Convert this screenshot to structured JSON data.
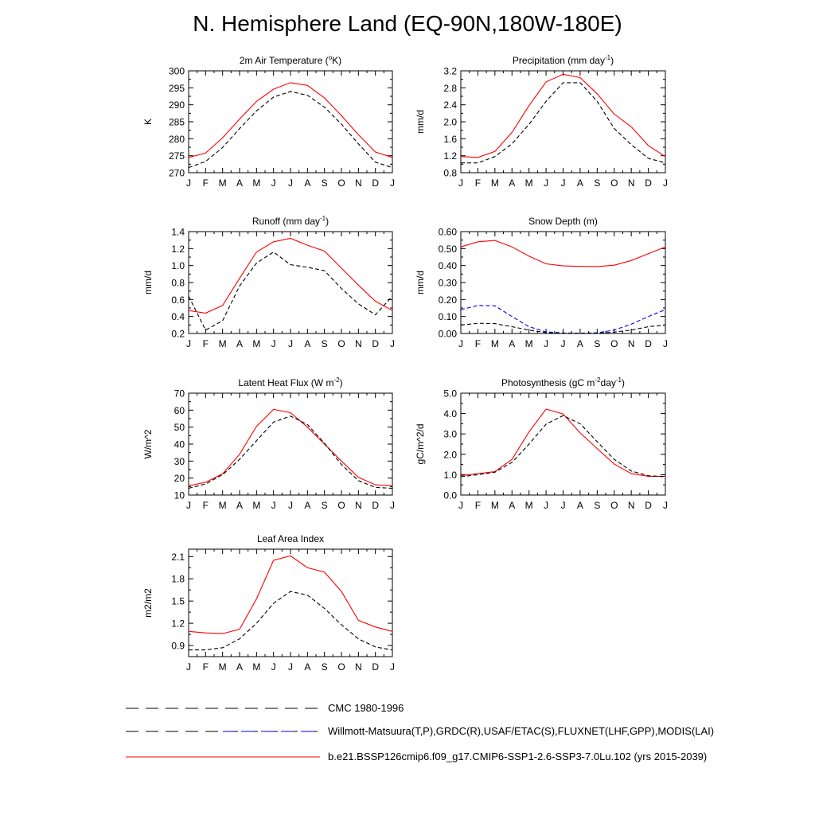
{
  "figure_title": "N. Hemisphere Land (EQ-90N,180W-180E)",
  "legend": [
    {
      "label": "CMC 1980-1996",
      "color": "#000000",
      "style": "dashed"
    },
    {
      "label": "Willmott-Matsuura(T,P),GRDC(R),USAF/ETAC(S),FLUXNET(LHF,GPP),MODIS(LAI)",
      "color": "#000000",
      "style": "dashed"
    },
    {
      "label": "b.e21.BSSP126cmip6.f09_g17.CMIP6-SSP1-2.6-SSP3-7.0Lu.102 (yrs 2015-2039)",
      "color": "#ff0000",
      "style": "solid"
    }
  ],
  "chart_data": [
    {
      "type": "line",
      "title": "2m Air Temperature (°K)",
      "title_parts": [
        "2m Air Temperature (",
        "o",
        "K)"
      ],
      "ylabel": "K",
      "x": [
        "J",
        "F",
        "M",
        "A",
        "M",
        "J",
        "J",
        "A",
        "S",
        "O",
        "N",
        "D",
        "J"
      ],
      "ylim": [
        270,
        300
      ],
      "yticks": [
        270,
        275,
        280,
        285,
        290,
        295,
        300
      ],
      "ytick_labels": [
        "270",
        "275",
        "280",
        "285",
        "290",
        "295",
        "300"
      ],
      "series": [
        {
          "color": "#ff0000",
          "style": "solid",
          "values": [
            274.5,
            275.8,
            280.3,
            285.8,
            291.0,
            294.6,
            296.5,
            295.7,
            292.0,
            286.8,
            281.2,
            276.1,
            274.5
          ]
        },
        {
          "color": "#000000",
          "style": "dashed",
          "values": [
            271.5,
            273.3,
            277.4,
            283.0,
            288.2,
            292.3,
            293.9,
            292.8,
            289.3,
            284.3,
            278.5,
            273.1,
            271.5
          ]
        }
      ]
    },
    {
      "type": "line",
      "title": "Precipitation (mm day-1)",
      "title_parts": [
        "Precipitation (mm day",
        "-1",
        ")"
      ],
      "ylabel": "mm/d",
      "x": [
        "J",
        "F",
        "M",
        "A",
        "M",
        "J",
        "J",
        "A",
        "S",
        "O",
        "N",
        "D",
        "J"
      ],
      "ylim": [
        0.8,
        3.2
      ],
      "yticks": [
        0.8,
        1.2,
        1.6,
        2.0,
        2.4,
        2.8,
        3.2
      ],
      "ytick_labels": [
        "0.8",
        "1.2",
        "1.6",
        "2.0",
        "2.4",
        "2.8",
        "3.2"
      ],
      "series": [
        {
          "color": "#ff0000",
          "style": "solid",
          "values": [
            1.18,
            1.16,
            1.3,
            1.75,
            2.38,
            2.94,
            3.12,
            3.04,
            2.66,
            2.18,
            1.88,
            1.44,
            1.18
          ]
        },
        {
          "color": "#000000",
          "style": "dashed",
          "values": [
            1.03,
            1.03,
            1.18,
            1.48,
            1.94,
            2.48,
            2.92,
            2.92,
            2.48,
            1.84,
            1.46,
            1.14,
            1.03
          ]
        }
      ]
    },
    {
      "type": "line",
      "title": "Runoff (mm day-1)",
      "title_parts": [
        "Runoff (mm day",
        "-1",
        ")"
      ],
      "ylabel": "mm/d",
      "x": [
        "J",
        "F",
        "M",
        "A",
        "M",
        "J",
        "J",
        "A",
        "S",
        "O",
        "N",
        "D",
        "J"
      ],
      "ylim": [
        0.2,
        1.4
      ],
      "yticks": [
        0.2,
        0.4,
        0.6,
        0.8,
        1.0,
        1.2,
        1.4
      ],
      "ytick_labels": [
        "0.2",
        "0.4",
        "0.6",
        "0.8",
        "1.0",
        "1.2",
        "1.4"
      ],
      "series": [
        {
          "color": "#ff0000",
          "style": "solid",
          "values": [
            0.47,
            0.44,
            0.53,
            0.85,
            1.16,
            1.28,
            1.32,
            1.24,
            1.17,
            0.97,
            0.77,
            0.58,
            0.47
          ]
        },
        {
          "color": "#000000",
          "style": "dashed",
          "values": [
            0.64,
            0.24,
            0.35,
            0.76,
            1.03,
            1.16,
            1.01,
            0.98,
            0.94,
            0.73,
            0.55,
            0.42,
            0.64
          ]
        }
      ]
    },
    {
      "type": "line",
      "title": "Snow Depth (m)",
      "title_parts": [
        "Snow Depth (m)",
        "",
        ""
      ],
      "ylabel": "mm/d",
      "x": [
        "J",
        "F",
        "M",
        "A",
        "M",
        "J",
        "J",
        "A",
        "S",
        "O",
        "N",
        "D",
        "J"
      ],
      "ylim": [
        0.0,
        0.6
      ],
      "yticks": [
        0.0,
        0.1,
        0.2,
        0.3,
        0.4,
        0.5,
        0.6
      ],
      "ytick_labels": [
        "0.00",
        "0.10",
        "0.20",
        "0.30",
        "0.40",
        "0.50",
        "0.60"
      ],
      "series": [
        {
          "color": "#ff0000",
          "style": "solid",
          "values": [
            0.51,
            0.54,
            0.548,
            0.51,
            0.455,
            0.41,
            0.398,
            0.395,
            0.394,
            0.402,
            0.43,
            0.47,
            0.51
          ]
        },
        {
          "color": "#0000ff",
          "style": "dashed",
          "values": [
            0.14,
            0.165,
            0.163,
            0.1,
            0.04,
            0.01,
            0.003,
            0.002,
            0.004,
            0.02,
            0.055,
            0.1,
            0.14
          ]
        },
        {
          "color": "#000000",
          "style": "dashed",
          "values": [
            0.05,
            0.06,
            0.058,
            0.04,
            0.02,
            0.005,
            0.002,
            0.001,
            0.002,
            0.008,
            0.02,
            0.04,
            0.05
          ]
        }
      ]
    },
    {
      "type": "line",
      "title": "Latent Heat Flux (W m-2)",
      "title_parts": [
        "Latent Heat Flux (W m",
        "-2",
        ")"
      ],
      "ylabel": "W/m^2",
      "x": [
        "J",
        "F",
        "M",
        "A",
        "M",
        "J",
        "J",
        "A",
        "S",
        "O",
        "N",
        "D",
        "J"
      ],
      "ylim": [
        10,
        70
      ],
      "yticks": [
        10,
        20,
        30,
        40,
        50,
        60,
        70
      ],
      "ytick_labels": [
        "10",
        "20",
        "30",
        "40",
        "50",
        "60",
        "70"
      ],
      "series": [
        {
          "color": "#ff0000",
          "style": "solid",
          "values": [
            15.5,
            17.5,
            22.5,
            34.0,
            50.5,
            60.5,
            58.5,
            50.0,
            40.0,
            30.0,
            20.5,
            16.0,
            15.5
          ]
        },
        {
          "color": "#000000",
          "style": "dashed",
          "values": [
            14.0,
            16.5,
            22.0,
            31.0,
            42.0,
            53.0,
            56.5,
            51.5,
            40.5,
            28.0,
            18.5,
            14.5,
            14.0
          ]
        }
      ]
    },
    {
      "type": "line",
      "title": "Photosynthesis (gC m-2day-1)",
      "title_parts": [
        "Photosynthesis (gC m",
        "-2",
        "day",
        "-1",
        ")"
      ],
      "ylabel": "gC/m^2/d",
      "x": [
        "J",
        "F",
        "M",
        "A",
        "M",
        "J",
        "J",
        "A",
        "S",
        "O",
        "N",
        "D",
        "J"
      ],
      "ylim": [
        0.0,
        5.0
      ],
      "yticks": [
        0.0,
        1.0,
        2.0,
        3.0,
        4.0,
        5.0
      ],
      "ytick_labels": [
        "0.0",
        "1.0",
        "2.0",
        "3.0",
        "4.0",
        "5.0"
      ],
      "series": [
        {
          "color": "#ff0000",
          "style": "solid",
          "values": [
            0.95,
            1.05,
            1.15,
            1.75,
            3.1,
            4.22,
            3.98,
            3.05,
            2.28,
            1.52,
            1.05,
            0.92,
            0.92
          ]
        },
        {
          "color": "#000000",
          "style": "dashed",
          "values": [
            0.9,
            1.0,
            1.12,
            1.6,
            2.5,
            3.48,
            3.9,
            3.5,
            2.62,
            1.75,
            1.18,
            0.95,
            0.9
          ]
        }
      ]
    },
    {
      "type": "line",
      "title": "Leaf Area Index",
      "title_parts": [
        "Leaf Area Index",
        "",
        ""
      ],
      "ylabel": "m2/m2",
      "x": [
        "J",
        "F",
        "M",
        "A",
        "M",
        "J",
        "J",
        "A",
        "S",
        "O",
        "N",
        "D",
        "J"
      ],
      "ylim": [
        0.75,
        2.2
      ],
      "yticks": [
        0.9,
        1.2,
        1.5,
        1.8,
        2.1
      ],
      "ytick_labels": [
        "0.9",
        "1.2",
        "1.5",
        "1.8",
        "2.1"
      ],
      "series": [
        {
          "color": "#ff0000",
          "style": "solid",
          "values": [
            1.09,
            1.07,
            1.06,
            1.12,
            1.53,
            2.05,
            2.11,
            1.95,
            1.89,
            1.63,
            1.24,
            1.15,
            1.09
          ]
        },
        {
          "color": "#000000",
          "style": "dashed",
          "values": [
            0.84,
            0.84,
            0.87,
            0.99,
            1.2,
            1.47,
            1.63,
            1.58,
            1.4,
            1.18,
            0.99,
            0.88,
            0.84
          ]
        }
      ]
    }
  ]
}
